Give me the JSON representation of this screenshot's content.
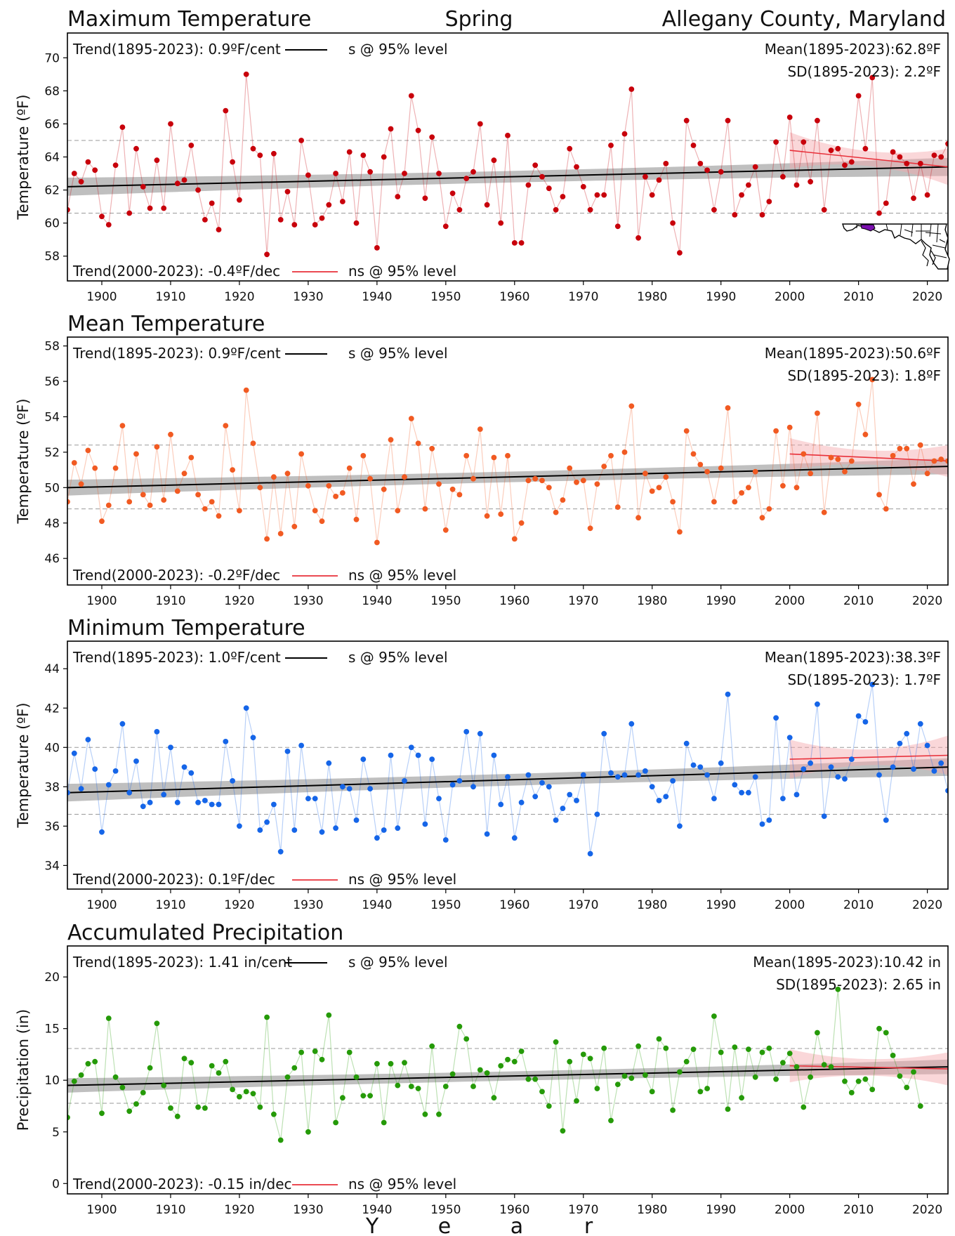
{
  "header": {
    "left_title": "Maximum Temperature",
    "center_title": "Spring",
    "right_title": "Allegany County, Maryland"
  },
  "xaxis": {
    "label_letters": [
      "Y",
      "e",
      "a",
      "r"
    ],
    "ticks": [
      1900,
      1910,
      1920,
      1930,
      1940,
      1950,
      1960,
      1970,
      1980,
      1990,
      2000,
      2010,
      2020
    ],
    "range": [
      1895,
      2023
    ]
  },
  "colors": {
    "max": "#c8000b",
    "mean": "#f15a22",
    "min": "#1565e8",
    "precip": "#259a08",
    "long_trend": "#000000",
    "recent_trend": "#e8303a"
  },
  "map_inset": {
    "icon": "maryland-county-map-icon",
    "highlight_color": "#7b0fb0"
  },
  "chart_data": [
    {
      "type": "line",
      "id": "max",
      "title": "Maximum Temperature",
      "ylabel": "Temperature (ºF)",
      "ylim": [
        56.5,
        71.5
      ],
      "yticks": [
        58,
        60,
        62,
        64,
        66,
        68,
        70
      ],
      "xlim": [
        1895,
        2023
      ],
      "long_trend_text": "Trend(1895-2023):  0.9ºF/cent",
      "long_sig": "s @ 95% level",
      "recent_trend_text": "Trend(2000-2023): -0.4ºF/dec",
      "recent_sig": "ns @ 95% level",
      "mean_text": "Mean(1895-2023):62.8ºF",
      "sd_text": "SD(1895-2023): 2.2ºF",
      "mean": 62.8,
      "sd_band": [
        60.6,
        65.0
      ],
      "long_trend": {
        "x": [
          1895,
          2023
        ],
        "y": [
          62.2,
          63.4
        ]
      },
      "long_ci": [
        0.55,
        0.35,
        0.55
      ],
      "recent_trend": {
        "x": [
          2000,
          2023
        ],
        "y": [
          64.4,
          63.4
        ]
      },
      "recent_ci": [
        1.1,
        0.45,
        1.1
      ],
      "series": [
        {
          "x_start": 1895,
          "values": [
            60.8,
            63.0,
            62.5,
            63.7,
            63.2,
            60.4,
            59.9,
            63.5,
            65.8,
            60.6,
            64.5,
            62.2,
            60.9,
            63.8,
            60.9,
            66.0,
            62.4,
            62.6,
            64.7,
            62.0,
            60.2,
            61.2,
            59.6,
            66.8,
            63.7,
            61.4,
            69.0,
            64.5,
            64.1,
            58.1,
            64.2,
            60.2,
            61.9,
            59.9,
            65.0,
            62.9,
            59.9,
            60.3,
            61.1,
            63.0,
            61.3,
            64.3,
            60.0,
            64.1,
            63.1,
            58.5,
            64.0,
            65.7,
            61.6,
            63.0,
            67.7,
            65.6,
            61.5,
            65.2,
            63.0,
            59.8,
            61.8,
            60.8,
            62.7,
            63.1,
            66.0,
            61.1,
            63.8,
            60.0,
            65.3,
            58.8,
            58.8,
            62.3,
            63.5,
            62.8,
            62.1,
            60.8,
            61.6,
            64.5,
            63.4,
            62.2,
            60.8,
            61.7,
            61.7,
            64.7,
            59.8,
            65.4,
            68.1,
            59.1,
            62.8,
            61.7,
            62.6,
            63.6,
            60.0,
            58.2,
            66.2,
            64.7,
            63.6,
            63.2,
            60.8,
            63.1,
            66.2,
            60.5,
            61.7,
            62.3,
            63.4,
            60.5,
            61.3,
            64.9,
            62.8,
            66.4,
            62.3,
            64.9,
            62.5,
            66.2,
            60.8,
            64.4,
            64.5,
            63.5,
            63.7,
            67.7,
            64.5,
            68.8,
            60.6,
            61.2,
            64.3,
            64.0,
            63.6,
            61.5,
            63.6,
            61.7,
            64.1,
            64.0,
            64.8
          ]
        }
      ]
    },
    {
      "type": "line",
      "id": "mean",
      "title": "Mean Temperature",
      "ylabel": "Temperature (ºF)",
      "ylim": [
        44.5,
        58.5
      ],
      "yticks": [
        46,
        48,
        50,
        52,
        54,
        56,
        58
      ],
      "xlim": [
        1895,
        2023
      ],
      "long_trend_text": "Trend(1895-2023):  0.9ºF/cent",
      "long_sig": "s @ 95% level",
      "recent_trend_text": "Trend(2000-2023): -0.2ºF/dec",
      "recent_sig": "ns @ 95% level",
      "mean_text": "Mean(1895-2023):50.6ºF",
      "sd_text": "SD(1895-2023): 1.8ºF",
      "mean": 50.6,
      "sd_band": [
        48.8,
        52.4
      ],
      "long_trend": {
        "x": [
          1895,
          2023
        ],
        "y": [
          50.0,
          51.2
        ]
      },
      "long_ci": [
        0.45,
        0.3,
        0.45
      ],
      "recent_trend": {
        "x": [
          2000,
          2023
        ],
        "y": [
          51.9,
          51.5
        ]
      },
      "recent_ci": [
        0.9,
        0.4,
        0.9
      ],
      "series": [
        {
          "x_start": 1895,
          "values": [
            49.2,
            51.4,
            50.2,
            52.1,
            51.1,
            48.1,
            49.0,
            51.1,
            53.5,
            49.2,
            51.9,
            49.6,
            49.0,
            52.3,
            49.3,
            53.0,
            49.8,
            50.8,
            51.7,
            49.6,
            48.8,
            49.2,
            48.4,
            53.5,
            51.0,
            48.7,
            55.5,
            52.5,
            50.0,
            47.1,
            50.6,
            47.4,
            50.8,
            47.8,
            51.9,
            50.1,
            48.7,
            48.1,
            50.1,
            49.5,
            49.7,
            51.1,
            48.2,
            51.8,
            50.5,
            46.9,
            49.9,
            52.7,
            48.7,
            50.6,
            53.9,
            52.5,
            48.8,
            52.2,
            50.2,
            47.6,
            49.9,
            49.6,
            51.8,
            50.5,
            53.3,
            48.4,
            51.7,
            48.5,
            51.8,
            47.1,
            48.0,
            50.4,
            50.5,
            50.4,
            50.0,
            48.6,
            49.3,
            51.1,
            50.3,
            50.4,
            47.7,
            50.2,
            51.2,
            51.8,
            48.9,
            52.0,
            54.6,
            48.3,
            50.8,
            49.8,
            50.0,
            50.6,
            49.2,
            47.5,
            53.2,
            51.9,
            51.3,
            50.9,
            49.2,
            51.1,
            54.5,
            49.2,
            49.7,
            50.0,
            50.9,
            48.3,
            48.8,
            53.2,
            50.1,
            53.4,
            50.0,
            51.9,
            50.8,
            54.2,
            48.6,
            51.7,
            51.6,
            50.9,
            51.5,
            54.7,
            53.0,
            56.1,
            49.6,
            48.8,
            51.8,
            52.2,
            52.2,
            50.2,
            52.4,
            50.8,
            51.5,
            51.6,
            51.5
          ]
        }
      ]
    },
    {
      "type": "line",
      "id": "min",
      "title": "Minimum Temperature",
      "ylabel": "Temperature (ºF)",
      "ylim": [
        32.8,
        45.4
      ],
      "yticks": [
        34,
        36,
        38,
        40,
        42,
        44
      ],
      "xlim": [
        1895,
        2023
      ],
      "long_trend_text": "Trend(1895-2023):  1.0ºF/cent",
      "long_sig": "s @ 95% level",
      "recent_trend_text": "Trend(2000-2023):  0.1ºF/dec",
      "recent_sig": "ns @ 95% level",
      "mean_text": "Mean(1895-2023):38.3ºF",
      "sd_text": "SD(1895-2023): 1.7ºF",
      "mean": 38.3,
      "sd_band": [
        36.6,
        40.0
      ],
      "long_trend": {
        "x": [
          1895,
          2023
        ],
        "y": [
          37.7,
          39.0
        ]
      },
      "long_ci": [
        0.45,
        0.3,
        0.45
      ],
      "recent_trend": {
        "x": [
          2000,
          2023
        ],
        "y": [
          39.4,
          39.6
        ]
      },
      "recent_ci": [
        1.0,
        0.4,
        1.0
      ],
      "series": [
        {
          "x_start": 1895,
          "values": [
            37.7,
            39.7,
            37.9,
            40.4,
            38.9,
            35.7,
            38.1,
            38.8,
            41.2,
            37.7,
            39.3,
            37.0,
            37.2,
            40.8,
            37.6,
            40.0,
            37.2,
            39.0,
            38.7,
            37.2,
            37.3,
            37.1,
            37.1,
            40.3,
            38.3,
            36.0,
            42.0,
            40.5,
            35.8,
            36.2,
            37.1,
            34.7,
            39.8,
            35.8,
            40.1,
            37.4,
            37.4,
            35.7,
            39.2,
            35.9,
            38.0,
            37.9,
            36.3,
            39.4,
            37.9,
            35.4,
            35.8,
            39.6,
            35.9,
            38.3,
            40.0,
            39.6,
            36.1,
            39.4,
            37.4,
            35.3,
            38.1,
            38.3,
            40.8,
            38.0,
            40.7,
            35.6,
            39.6,
            37.1,
            38.5,
            35.4,
            37.2,
            38.6,
            37.5,
            38.2,
            38.0,
            36.3,
            36.9,
            37.6,
            37.3,
            38.6,
            34.6,
            36.6,
            40.7,
            38.7,
            38.5,
            38.6,
            41.2,
            38.6,
            38.8,
            38.0,
            37.3,
            37.5,
            38.3,
            36.0,
            40.2,
            39.1,
            39.0,
            38.6,
            37.4,
            39.2,
            42.7,
            38.1,
            37.7,
            37.7,
            38.5,
            36.1,
            36.3,
            41.5,
            37.4,
            40.5,
            37.6,
            38.9,
            39.2,
            42.2,
            36.5,
            39.0,
            38.5,
            38.4,
            39.4,
            41.6,
            41.3,
            43.2,
            38.6,
            36.3,
            39.0,
            40.2,
            40.7,
            38.9,
            41.2,
            40.1,
            38.8,
            39.2,
            37.8
          ]
        }
      ]
    },
    {
      "type": "line",
      "id": "precip",
      "title": "Accumulated Precipitation",
      "ylabel": "Precipitation (in)",
      "ylim": [
        -1.0,
        23.0
      ],
      "yticks": [
        0,
        5,
        10,
        15,
        20
      ],
      "xlim": [
        1895,
        2023
      ],
      "long_trend_text": "Trend(1895-2023):  1.41 in/cent",
      "long_sig": "s @ 95% level",
      "recent_trend_text": "Trend(2000-2023): -0.15 in/dec",
      "recent_sig": "ns @ 95% level",
      "mean_text": "Mean(1895-2023):10.42 in",
      "sd_text": "SD(1895-2023): 2.65 in",
      "mean": 10.42,
      "sd_band": [
        7.77,
        13.07
      ],
      "long_trend": {
        "x": [
          1895,
          2023
        ],
        "y": [
          9.5,
          11.3
        ]
      },
      "long_ci": [
        0.7,
        0.45,
        0.7
      ],
      "recent_trend": {
        "x": [
          2000,
          2023
        ],
        "y": [
          11.4,
          11.1
        ]
      },
      "recent_ci": [
        1.6,
        0.8,
        1.6
      ],
      "series": [
        {
          "x_start": 1895,
          "values": [
            6.4,
            9.9,
            10.5,
            11.6,
            11.8,
            6.8,
            16.0,
            10.3,
            9.3,
            7.0,
            7.7,
            8.8,
            11.2,
            15.5,
            9.5,
            7.3,
            6.5,
            12.1,
            11.7,
            7.4,
            7.3,
            11.4,
            10.7,
            11.8,
            9.1,
            8.4,
            8.9,
            8.7,
            7.4,
            16.1,
            6.7,
            4.2,
            10.3,
            11.2,
            12.7,
            5.0,
            12.8,
            12.0,
            16.3,
            5.9,
            8.3,
            12.7,
            10.3,
            8.5,
            8.5,
            11.6,
            5.9,
            11.6,
            9.5,
            11.7,
            9.4,
            9.2,
            6.7,
            13.3,
            6.7,
            9.4,
            10.6,
            15.2,
            14.0,
            9.4,
            11.0,
            10.7,
            8.3,
            11.4,
            12.0,
            11.8,
            12.8,
            10.1,
            10.1,
            8.9,
            7.5,
            13.7,
            5.1,
            11.8,
            8.0,
            12.5,
            12.1,
            9.2,
            13.1,
            6.1,
            9.6,
            10.4,
            10.2,
            13.3,
            10.5,
            8.9,
            14.0,
            13.1,
            7.1,
            10.8,
            11.8,
            13.0,
            8.9,
            9.2,
            16.2,
            12.7,
            7.2,
            13.2,
            8.3,
            13.0,
            10.3,
            12.7,
            13.1,
            10.1,
            11.7,
            12.6,
            11.3,
            7.4,
            10.3,
            14.6,
            11.5,
            11.3,
            18.8,
            9.9,
            8.8,
            9.9,
            10.1,
            9.1,
            15.0,
            14.6,
            12.4,
            10.4,
            9.3,
            10.8,
            7.5
          ]
        }
      ]
    }
  ]
}
